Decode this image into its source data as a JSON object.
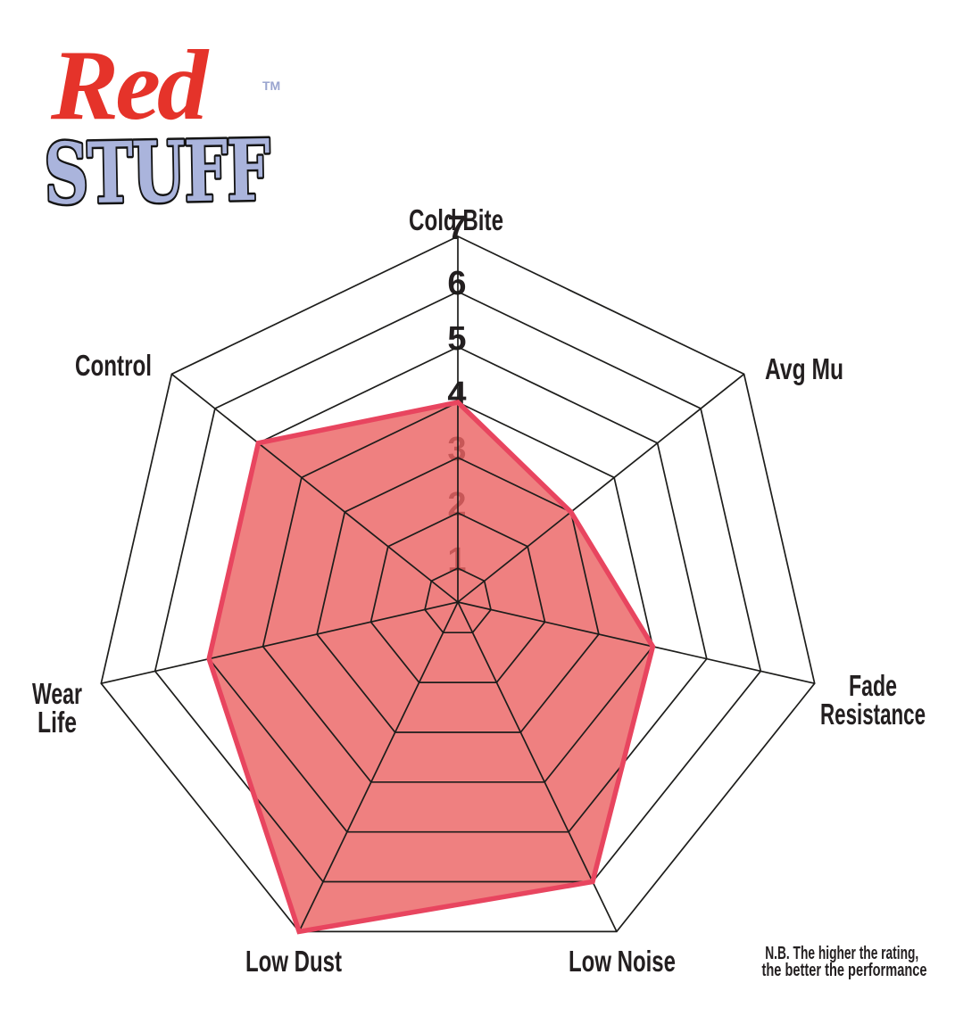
{
  "logo": {
    "word1": "Red",
    "word2": "STUFF",
    "trademark": "TM",
    "word1_color": "#e5332a",
    "word2_color": "#aab4dc"
  },
  "note": {
    "line1": "N.B. The higher the rating,",
    "line2": "the better the performance"
  },
  "chart_data": {
    "type": "radar",
    "title": "",
    "categories": [
      "Cold Bite",
      "Avg Mu",
      "Fade Resistance",
      "Low Noise",
      "Low Dust",
      "Wear Life",
      "Control"
    ],
    "series": [
      {
        "name": "RedStuff",
        "values": [
          4,
          3,
          4,
          6,
          7,
          5,
          5
        ]
      }
    ],
    "axis_range": [
      1,
      7
    ],
    "tick_labels": [
      "1",
      "2",
      "3",
      "4",
      "5",
      "6",
      "7"
    ],
    "tick_axis": "Cold Bite",
    "grid": true,
    "legend_position": "none",
    "colors": {
      "fill": "#ec6464",
      "fill_opacity": 0.82,
      "stroke": "#e8455f",
      "grid_line": "#1d1d1b",
      "label_text": "#231f20"
    }
  }
}
